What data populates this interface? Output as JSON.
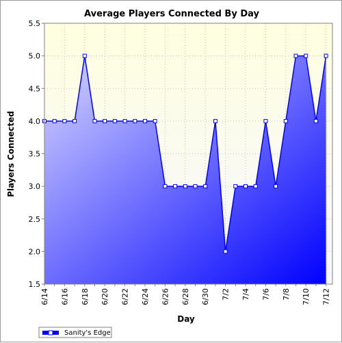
{
  "chart_data": {
    "type": "area",
    "title": "Average Players Connected By Day",
    "xlabel": "Day",
    "ylabel": "Players Connected",
    "ylim": [
      1.5,
      5.5
    ],
    "yticks": [
      "1.5",
      "2.0",
      "2.5",
      "3.0",
      "3.5",
      "4.0",
      "4.5",
      "5.0",
      "5.5"
    ],
    "xticks": [
      "6/14",
      "6/16",
      "6/18",
      "6/20",
      "6/22",
      "6/24",
      "6/26",
      "6/28",
      "6/30",
      "7/2",
      "7/4",
      "7/6",
      "7/8",
      "7/10",
      "7/12"
    ],
    "categories": [
      "6/14",
      "6/15",
      "6/16",
      "6/17",
      "6/18",
      "6/19",
      "6/20",
      "6/21",
      "6/22",
      "6/23",
      "6/24",
      "6/25",
      "6/26",
      "6/27",
      "6/28",
      "6/29",
      "6/30",
      "7/1",
      "7/2",
      "7/3",
      "7/4",
      "7/5",
      "7/6",
      "7/7",
      "7/8",
      "7/9",
      "7/10",
      "7/11",
      "7/12"
    ],
    "grid": true,
    "legend_position": "bottom-left",
    "series": [
      {
        "name": "Sanity's Edge",
        "color": "#0000ff",
        "values": [
          4,
          4,
          4,
          4,
          5,
          4,
          4,
          4,
          4,
          4,
          4,
          4,
          3,
          3,
          3,
          3,
          3,
          4,
          2,
          3,
          3,
          3,
          4,
          3,
          4,
          5,
          5,
          4,
          5
        ]
      }
    ],
    "colors": {
      "plot_bg_top": "#ffffe0",
      "plot_bg_bottom": "#f6f6ff",
      "area_light": "#d8d8ff",
      "area_dark": "#0000ff",
      "line": "#0000ff",
      "grid": "#c8c8a0"
    }
  }
}
